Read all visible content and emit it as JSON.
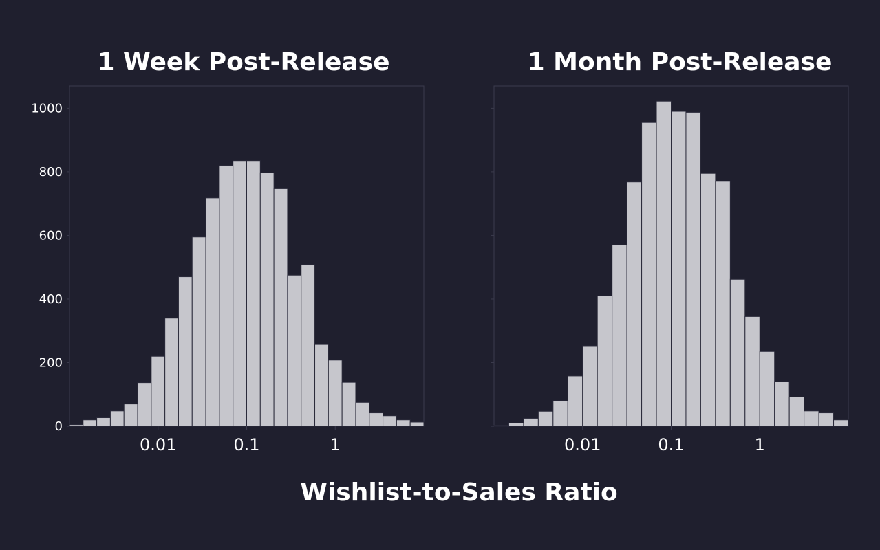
{
  "figure": {
    "xlabel": "Wishlist-to-Sales Ratio",
    "background": "#1f1f2e",
    "bar_color": "#c6c6cc",
    "bar_edge_color": "#2a2a3a",
    "frame_color": "#3b3b4d"
  },
  "chart_data": [
    {
      "type": "bar",
      "title": "1 Week Post-Release",
      "xlabel": "",
      "ylabel": "",
      "x_scale": "log",
      "x_tick_values": [
        0.01,
        0.1,
        1
      ],
      "x_tick_labels": [
        "0.01",
        "0.1",
        "1"
      ],
      "y_tick_values": [
        0,
        200,
        400,
        600,
        800,
        1000
      ],
      "y_tick_labels": [
        "0",
        "200",
        "400",
        "600",
        "800",
        "1000"
      ],
      "ylim": [
        0,
        1070
      ],
      "grid": false,
      "bin_log10_range": [
        -3.0,
        1.0
      ],
      "bin_count": 26,
      "values": [
        5,
        20,
        27,
        48,
        70,
        137,
        220,
        340,
        470,
        595,
        718,
        820,
        835,
        835,
        797,
        747,
        475,
        508,
        257,
        208,
        138,
        75,
        42,
        33,
        20,
        13
      ]
    },
    {
      "type": "bar",
      "title": "1 Month Post-Release",
      "xlabel": "",
      "ylabel": "",
      "x_scale": "log",
      "x_tick_values": [
        0.01,
        0.1,
        1
      ],
      "x_tick_labels": [
        "0.01",
        "0.1",
        "1"
      ],
      "y_tick_values": [
        0,
        200,
        400,
        600,
        800,
        1000
      ],
      "y_tick_labels": [
        "",
        "",
        "",
        "",
        "",
        ""
      ],
      "ylim": [
        0,
        1070
      ],
      "grid": false,
      "bin_log10_range": [
        -3.0,
        1.0
      ],
      "bin_count": 24,
      "values": [
        3,
        10,
        25,
        47,
        80,
        158,
        253,
        410,
        570,
        768,
        955,
        1022,
        990,
        987,
        795,
        770,
        462,
        345,
        235,
        140,
        92,
        48,
        42,
        20
      ]
    }
  ]
}
